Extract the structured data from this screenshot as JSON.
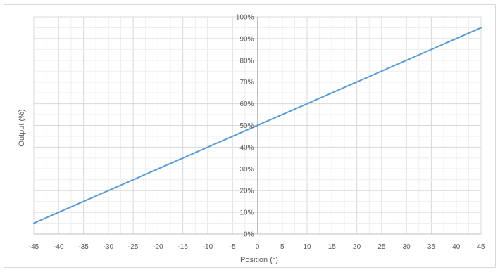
{
  "chart_data": {
    "type": "line",
    "xlabel": "Position (°)",
    "ylabel": "Output (%)",
    "xlim": [
      -45,
      45
    ],
    "ylim": [
      0,
      100
    ],
    "x_ticks": [
      -45,
      -40,
      -35,
      -30,
      -25,
      -20,
      -15,
      -10,
      -5,
      0,
      5,
      10,
      15,
      20,
      25,
      30,
      35,
      40,
      45
    ],
    "y_ticks": [
      0,
      10,
      20,
      30,
      40,
      50,
      60,
      70,
      80,
      90,
      100
    ],
    "x_tick_labels": [
      "-45",
      "-40",
      "-35",
      "-30",
      "-25",
      "-20",
      "-15",
      "-10",
      "-5",
      "0",
      "5",
      "10",
      "15",
      "20",
      "25",
      "30",
      "35",
      "40",
      "45"
    ],
    "y_tick_labels": [
      "0%",
      "10%",
      "20%",
      "30%",
      "40%",
      "50%",
      "60%",
      "70%",
      "80%",
      "90%",
      "100%"
    ],
    "grid": true,
    "series": [
      {
        "color": "#5b9bd5",
        "x": [
          -45,
          45
        ],
        "y": [
          5,
          95
        ]
      }
    ],
    "colors": {
      "grid": "#d9d9d9",
      "axis": "#bfbfbf",
      "text": "#595959"
    }
  }
}
